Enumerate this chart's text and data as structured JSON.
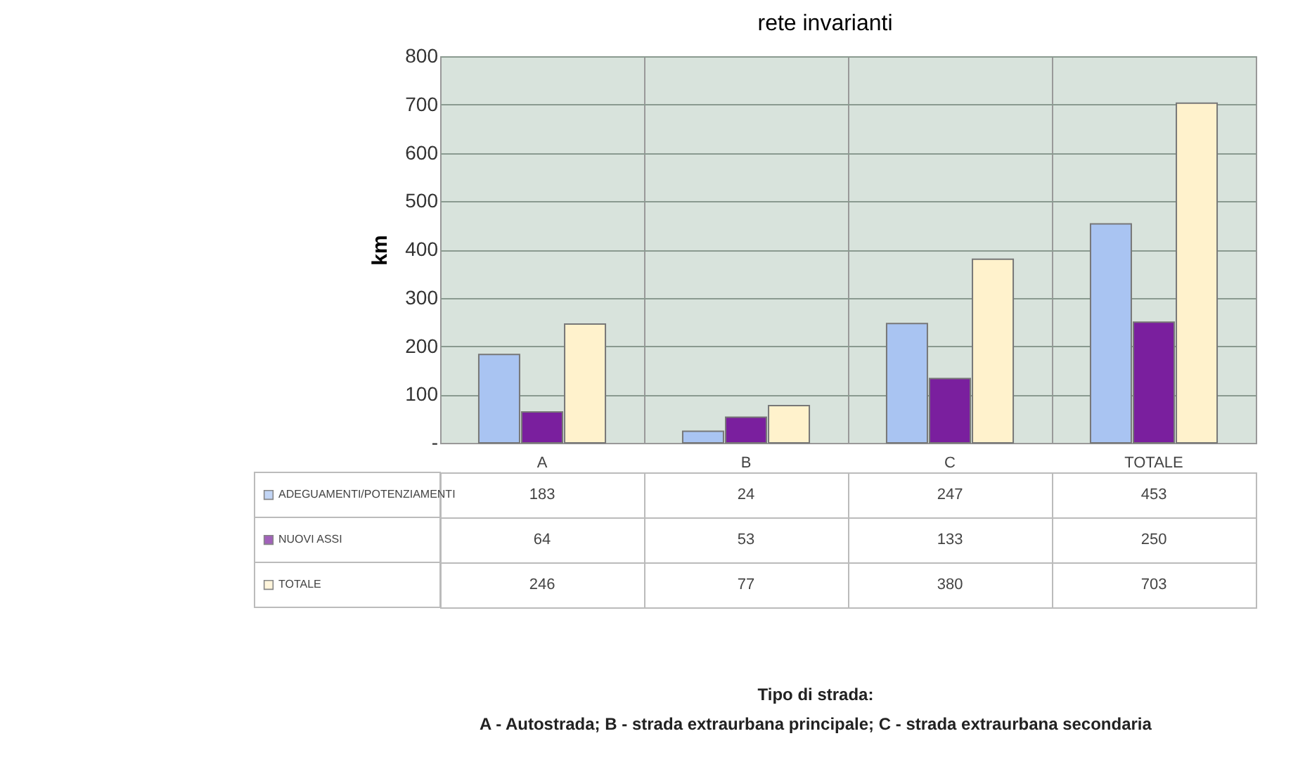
{
  "chart_data": {
    "type": "bar",
    "title": "rete invarianti",
    "ylabel": "km",
    "annotations": [
      "Tipo di strada:",
      "A - Autostrada;  B - strada extraurbana principale;  C - strada extraurbana secondaria"
    ],
    "categories": [
      "A",
      "B",
      "C",
      "TOTALE"
    ],
    "series": [
      {
        "name": "ADEGUAMENTI/POTENZIAMENTI",
        "color": "#a9c4f2",
        "values": [
          183,
          24,
          247,
          453
        ]
      },
      {
        "name": "NUOVI ASSI",
        "color": "#7a1f9e",
        "values": [
          64,
          53,
          133,
          250
        ]
      },
      {
        "name": "TOTALE",
        "color": "#fff2cc",
        "values": [
          246,
          77,
          380,
          703
        ]
      }
    ],
    "ylim": [
      0,
      800
    ],
    "yticks": [
      {
        "value": 0,
        "label": "-"
      },
      100,
      200,
      300,
      400,
      500,
      600,
      700,
      800
    ],
    "grid": "y",
    "legend": "bottom",
    "data_labels": true
  }
}
